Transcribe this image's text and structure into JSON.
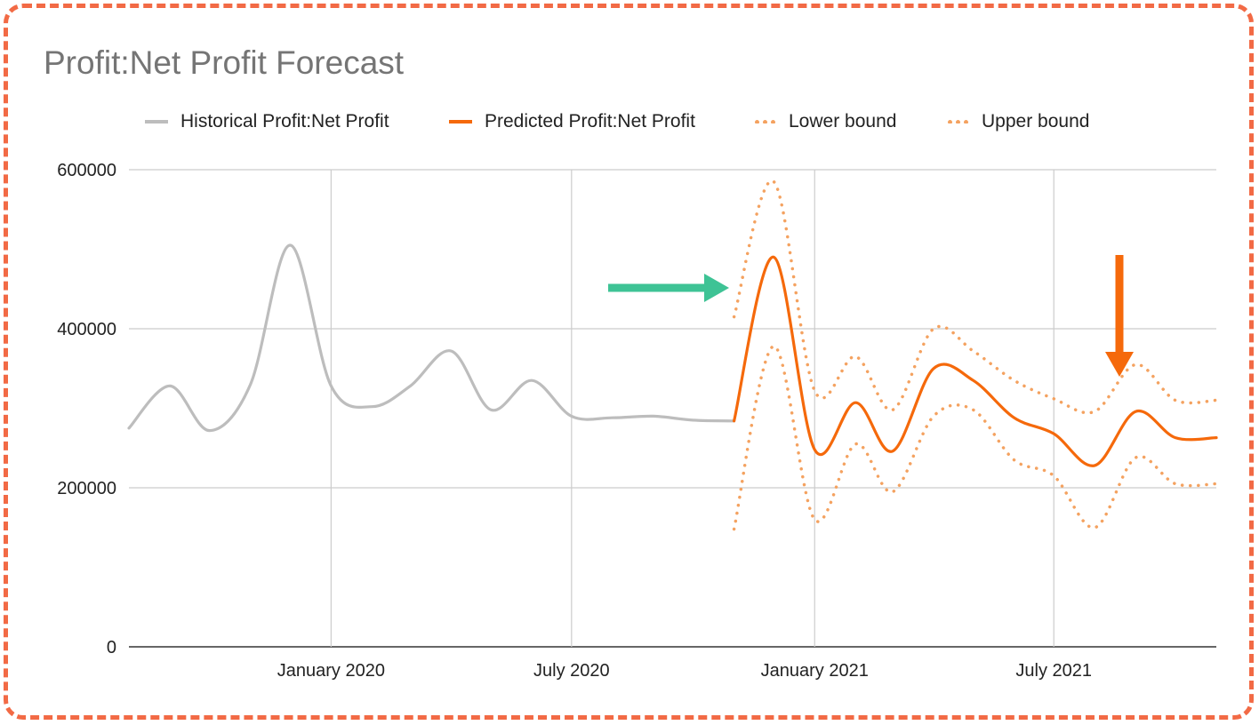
{
  "chart_data": {
    "type": "line",
    "title": "Profit:Net Profit Forecast",
    "ylim": [
      0,
      600000
    ],
    "yticks": [
      "0",
      "200000",
      "400000",
      "600000"
    ],
    "xticks": [
      "January 2020",
      "July 2020",
      "January 2021",
      "July 2021"
    ],
    "xtick_dates": [
      "2020-01-01",
      "2020-07-01",
      "2021-01-01",
      "2021-07-01"
    ],
    "xlim": [
      "2019-08-01",
      "2021-11-01"
    ],
    "grid": true,
    "legend_position": "top",
    "series": [
      {
        "name": "Historical Profit:Net Profit",
        "color": "#bdbdbd",
        "style": "solid",
        "x": [
          "2019-08-01",
          "2019-09-01",
          "2019-10-01",
          "2019-11-01",
          "2019-12-01",
          "2020-01-01",
          "2020-02-01",
          "2020-03-01",
          "2020-04-01",
          "2020-05-01",
          "2020-06-01",
          "2020-07-01",
          "2020-08-01",
          "2020-09-01",
          "2020-10-01",
          "2020-11-01"
        ],
        "values": [
          275000,
          328000,
          272000,
          330000,
          505000,
          328000,
          302000,
          328000,
          372000,
          298000,
          335000,
          290000,
          288000,
          290000,
          285000,
          284000
        ]
      },
      {
        "name": "Predicted Profit:Net Profit",
        "color": "#f5690b",
        "style": "solid",
        "x": [
          "2020-11-01",
          "2020-12-01",
          "2021-01-01",
          "2021-02-01",
          "2021-03-01",
          "2021-04-01",
          "2021-05-01",
          "2021-06-01",
          "2021-07-01",
          "2021-08-01",
          "2021-09-01",
          "2021-10-01",
          "2021-11-01"
        ],
        "values": [
          284000,
          490000,
          248000,
          307000,
          246000,
          350000,
          335000,
          288000,
          268000,
          228000,
          296000,
          263000,
          263000
        ]
      },
      {
        "name": "Lower bound",
        "color": "#f4a260",
        "style": "dotted",
        "x": [
          "2020-11-01",
          "2020-12-01",
          "2021-01-01",
          "2021-02-01",
          "2021-03-01",
          "2021-04-01",
          "2021-05-01",
          "2021-06-01",
          "2021-07-01",
          "2021-08-01",
          "2021-09-01",
          "2021-10-01",
          "2021-11-01"
        ],
        "values": [
          148000,
          378000,
          160000,
          255000,
          195000,
          290000,
          298000,
          235000,
          215000,
          150000,
          238000,
          205000,
          205000
        ]
      },
      {
        "name": "Upper bound",
        "color": "#f4a260",
        "style": "dotted",
        "x": [
          "2020-11-01",
          "2020-12-01",
          "2021-01-01",
          "2021-02-01",
          "2021-03-01",
          "2021-04-01",
          "2021-05-01",
          "2021-06-01",
          "2021-07-01",
          "2021-08-01",
          "2021-09-01",
          "2021-10-01",
          "2021-11-01"
        ],
        "values": [
          415000,
          585000,
          322000,
          365000,
          298000,
          400000,
          372000,
          335000,
          312000,
          296000,
          355000,
          310000,
          310000
        ]
      }
    ],
    "annotations": [
      {
        "type": "arrow",
        "direction": "right",
        "color": "#3ec395"
      },
      {
        "type": "arrow",
        "direction": "down",
        "color": "#f5690b"
      }
    ]
  }
}
